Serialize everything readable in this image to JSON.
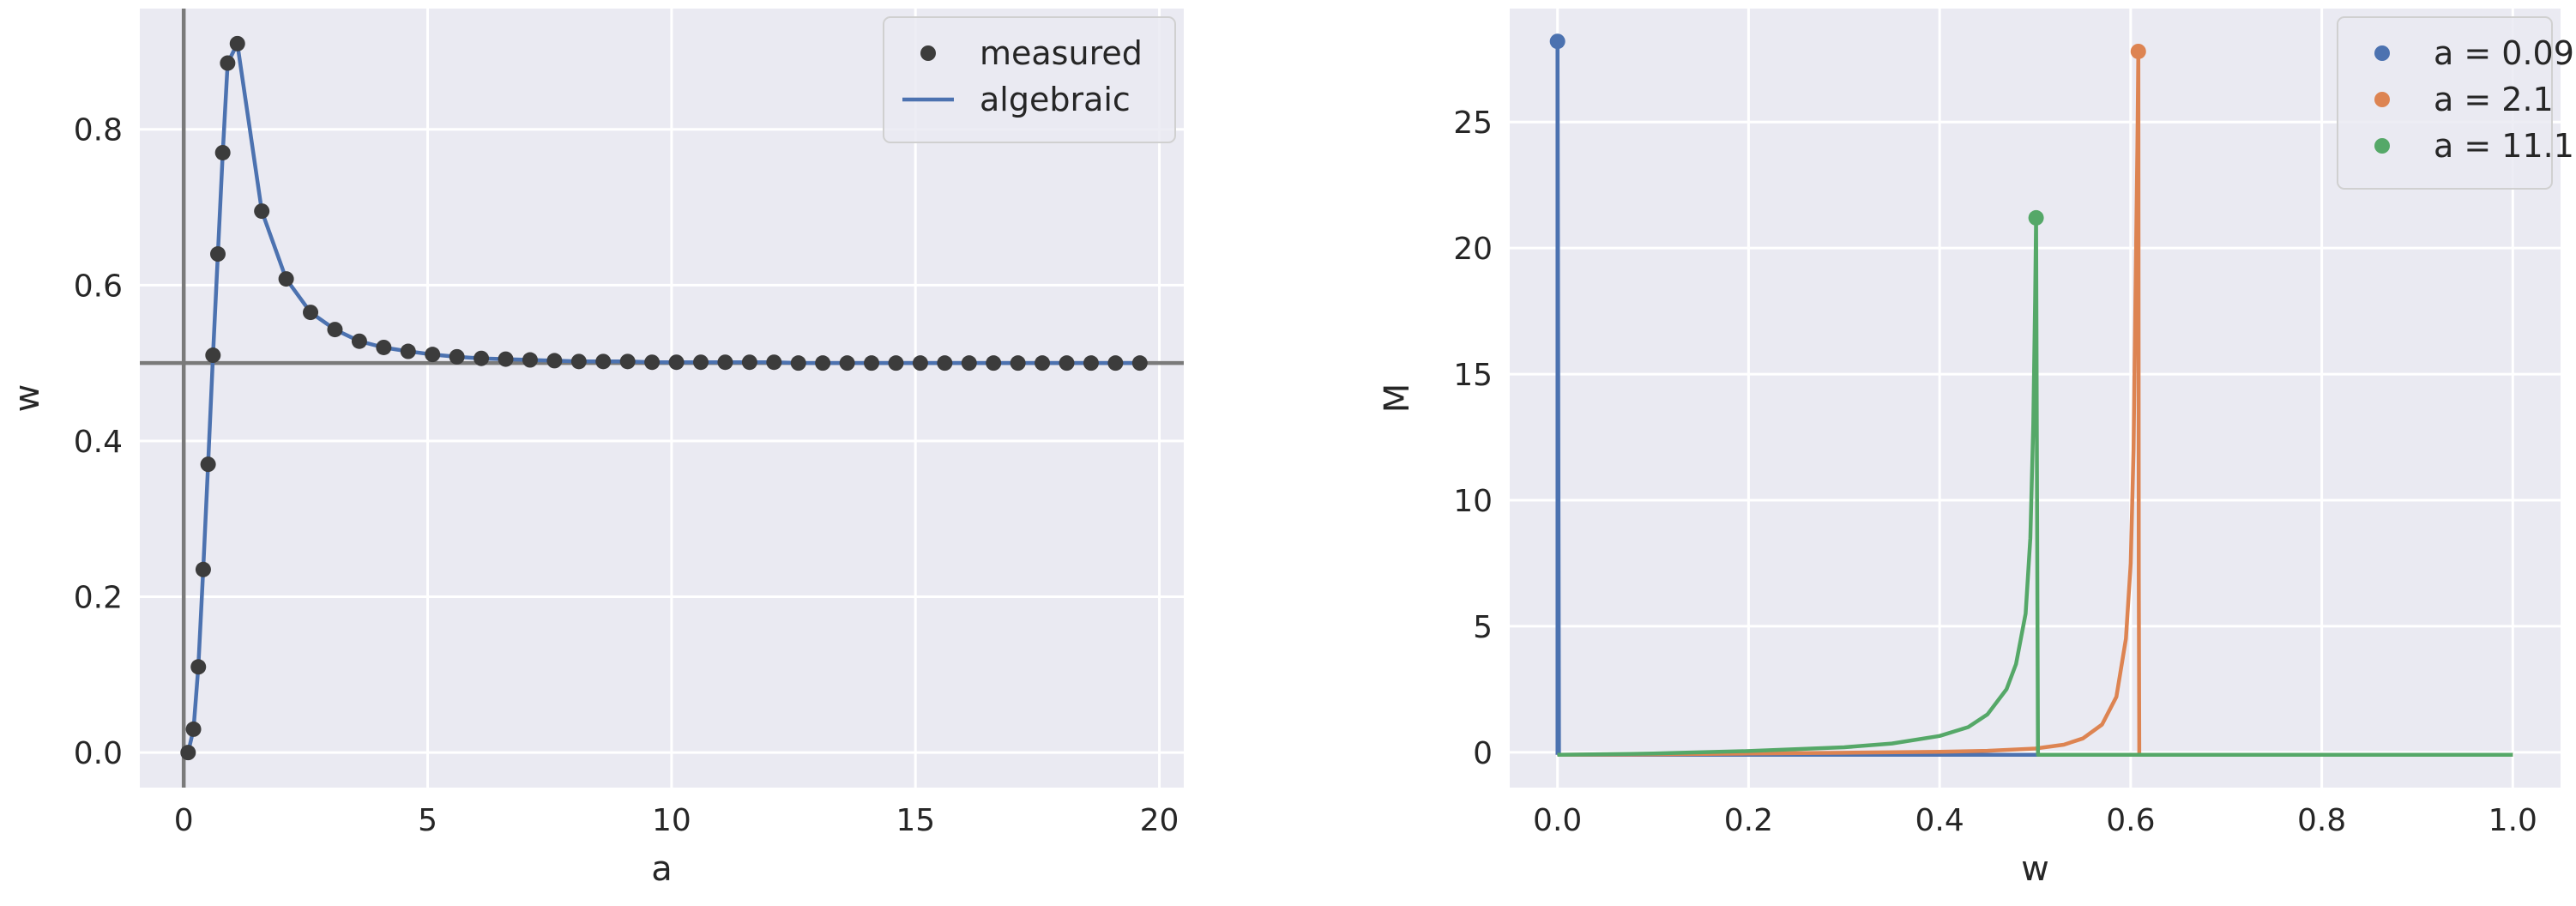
{
  "chart_data": [
    {
      "type": "line",
      "xlabel": "a",
      "ylabel": "w",
      "xlim": [
        -0.9,
        20.5
      ],
      "ylim": [
        -0.045,
        0.955
      ],
      "xticks": [
        0,
        5,
        10,
        15,
        20
      ],
      "yticks": [
        0.0,
        0.2,
        0.4,
        0.6,
        0.8
      ],
      "xtick_labels": [
        "0",
        "5",
        "10",
        "15",
        "20"
      ],
      "ytick_labels": [
        "0.0",
        "0.2",
        "0.4",
        "0.6",
        "0.8"
      ],
      "grid": true,
      "reference_lines": {
        "vertical_x": 0,
        "horizontal_y": 0.5
      },
      "legend": {
        "position": "top-right",
        "entries": [
          "measured",
          "algebraic"
        ]
      },
      "series": [
        {
          "name": "measured",
          "kind": "scatter",
          "color": "#3c3c3c",
          "points": [
            [
              0.09,
              0.0
            ],
            [
              0.2,
              0.03
            ],
            [
              0.3,
              0.11
            ],
            [
              0.4,
              0.235
            ],
            [
              0.5,
              0.37
            ],
            [
              0.6,
              0.51
            ],
            [
              0.7,
              0.64
            ],
            [
              0.8,
              0.77
            ],
            [
              0.9,
              0.885
            ],
            [
              1.1,
              0.91
            ],
            [
              1.6,
              0.695
            ],
            [
              2.1,
              0.608
            ],
            [
              2.6,
              0.565
            ],
            [
              3.1,
              0.543
            ],
            [
              3.6,
              0.528
            ],
            [
              4.1,
              0.52
            ],
            [
              4.6,
              0.515
            ],
            [
              5.1,
              0.511
            ],
            [
              5.6,
              0.508
            ],
            [
              6.1,
              0.506
            ],
            [
              6.6,
              0.505
            ],
            [
              7.1,
              0.504
            ],
            [
              7.6,
              0.503
            ],
            [
              8.1,
              0.502
            ],
            [
              8.6,
              0.502
            ],
            [
              9.1,
              0.502
            ],
            [
              9.6,
              0.501
            ],
            [
              10.1,
              0.501
            ],
            [
              10.6,
              0.501
            ],
            [
              11.1,
              0.501
            ],
            [
              11.6,
              0.501
            ],
            [
              12.1,
              0.501
            ],
            [
              12.6,
              0.5
            ],
            [
              13.1,
              0.5
            ],
            [
              13.6,
              0.5
            ],
            [
              14.1,
              0.5
            ],
            [
              14.6,
              0.5
            ],
            [
              15.1,
              0.5
            ],
            [
              15.6,
              0.5
            ],
            [
              16.1,
              0.5
            ],
            [
              16.6,
              0.5
            ],
            [
              17.1,
              0.5
            ],
            [
              17.6,
              0.5
            ],
            [
              18.1,
              0.5
            ],
            [
              18.6,
              0.5
            ],
            [
              19.1,
              0.5
            ],
            [
              19.6,
              0.5
            ]
          ]
        },
        {
          "name": "algebraic",
          "kind": "line",
          "color": "#4c72b0",
          "points": [
            [
              0.09,
              0.0
            ],
            [
              0.2,
              0.03
            ],
            [
              0.3,
              0.11
            ],
            [
              0.4,
              0.235
            ],
            [
              0.5,
              0.37
            ],
            [
              0.6,
              0.51
            ],
            [
              0.7,
              0.64
            ],
            [
              0.8,
              0.77
            ],
            [
              0.9,
              0.885
            ],
            [
              1.1,
              0.91
            ],
            [
              1.6,
              0.695
            ],
            [
              2.1,
              0.608
            ],
            [
              2.6,
              0.565
            ],
            [
              3.1,
              0.543
            ],
            [
              3.6,
              0.528
            ],
            [
              4.1,
              0.52
            ],
            [
              4.6,
              0.515
            ],
            [
              5.1,
              0.511
            ],
            [
              5.6,
              0.508
            ],
            [
              6.1,
              0.506
            ],
            [
              6.6,
              0.505
            ],
            [
              7.1,
              0.504
            ],
            [
              7.6,
              0.503
            ],
            [
              8.1,
              0.502
            ],
            [
              8.6,
              0.502
            ],
            [
              9.1,
              0.502
            ],
            [
              9.6,
              0.501
            ],
            [
              10.1,
              0.501
            ],
            [
              10.6,
              0.501
            ],
            [
              11.1,
              0.501
            ],
            [
              11.6,
              0.501
            ],
            [
              12.1,
              0.501
            ],
            [
              12.6,
              0.5
            ],
            [
              13.1,
              0.5
            ],
            [
              13.6,
              0.5
            ],
            [
              14.1,
              0.5
            ],
            [
              14.6,
              0.5
            ],
            [
              15.1,
              0.5
            ],
            [
              15.6,
              0.5
            ],
            [
              16.1,
              0.5
            ],
            [
              16.6,
              0.5
            ],
            [
              17.1,
              0.5
            ],
            [
              17.6,
              0.5
            ],
            [
              18.1,
              0.5
            ],
            [
              18.6,
              0.5
            ],
            [
              19.1,
              0.5
            ],
            [
              19.6,
              0.5
            ]
          ]
        }
      ]
    },
    {
      "type": "line",
      "xlabel": "w",
      "ylabel": "M",
      "xlim": [
        -0.05,
        1.05
      ],
      "ylim": [
        -1.4,
        29.5
      ],
      "xticks": [
        0.0,
        0.2,
        0.4,
        0.6,
        0.8,
        1.0
      ],
      "yticks": [
        0,
        5,
        10,
        15,
        20,
        25
      ],
      "xtick_labels": [
        "0.0",
        "0.2",
        "0.4",
        "0.6",
        "0.8",
        "1.0"
      ],
      "ytick_labels": [
        "0",
        "5",
        "10",
        "15",
        "20",
        "25"
      ],
      "grid": true,
      "legend": {
        "position": "top-right",
        "entries": [
          "a = 0.09",
          "a = 2.1",
          "a = 11.1"
        ]
      },
      "series": [
        {
          "name": "a = 0.09",
          "color": "#4c72b0",
          "peak": [
            0.0,
            28.2
          ],
          "points": [
            [
              0.0,
              -0.1
            ],
            [
              0.0,
              28.2
            ],
            [
              0.0015,
              -0.1
            ],
            [
              0.3,
              -0.1
            ],
            [
              0.6,
              -0.1
            ],
            [
              1.0,
              -0.1
            ]
          ]
        },
        {
          "name": "a = 2.1",
          "color": "#dd8452",
          "peak": [
            0.608,
            27.8
          ],
          "points": [
            [
              0.0,
              -0.1
            ],
            [
              0.1,
              -0.08
            ],
            [
              0.2,
              -0.05
            ],
            [
              0.3,
              -0.02
            ],
            [
              0.4,
              0.02
            ],
            [
              0.45,
              0.06
            ],
            [
              0.5,
              0.15
            ],
            [
              0.53,
              0.3
            ],
            [
              0.55,
              0.55
            ],
            [
              0.57,
              1.1
            ],
            [
              0.585,
              2.2
            ],
            [
              0.595,
              4.5
            ],
            [
              0.6,
              7.5
            ],
            [
              0.603,
              12.0
            ],
            [
              0.605,
              18.0
            ],
            [
              0.607,
              24.0
            ],
            [
              0.608,
              27.8
            ],
            [
              0.6085,
              7.0
            ],
            [
              0.609,
              -0.1
            ],
            [
              0.7,
              -0.1
            ],
            [
              0.85,
              -0.1
            ],
            [
              1.0,
              -0.1
            ]
          ]
        },
        {
          "name": "a = 11.1",
          "color": "#55a868",
          "peak": [
            0.501,
            21.2
          ],
          "points": [
            [
              0.0,
              -0.1
            ],
            [
              0.1,
              -0.05
            ],
            [
              0.2,
              0.05
            ],
            [
              0.3,
              0.2
            ],
            [
              0.35,
              0.35
            ],
            [
              0.4,
              0.65
            ],
            [
              0.43,
              1.0
            ],
            [
              0.45,
              1.5
            ],
            [
              0.47,
              2.5
            ],
            [
              0.48,
              3.5
            ],
            [
              0.49,
              5.5
            ],
            [
              0.495,
              8.5
            ],
            [
              0.498,
              13.0
            ],
            [
              0.5,
              18.0
            ],
            [
              0.501,
              21.2
            ],
            [
              0.502,
              10.0
            ],
            [
              0.503,
              -0.1
            ],
            [
              0.7,
              -0.1
            ],
            [
              0.85,
              -0.1
            ],
            [
              1.0,
              -0.1
            ]
          ]
        }
      ]
    }
  ]
}
